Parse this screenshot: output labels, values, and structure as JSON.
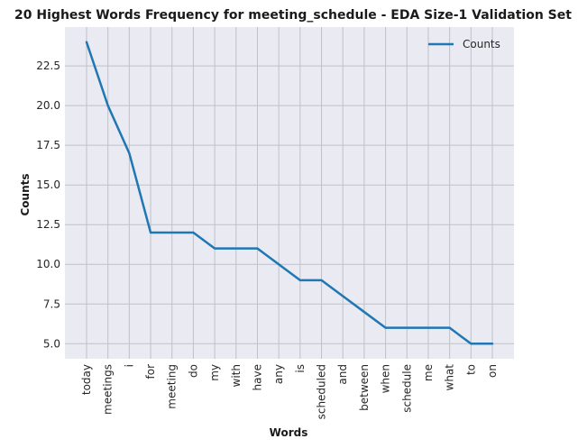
{
  "chart_data": {
    "type": "line",
    "title": "20 Highest Words Frequency for meeting_schedule - EDA Size-1 Validation Set",
    "xlabel": "Words",
    "ylabel": "Counts",
    "categories": [
      "today",
      "meetings",
      "i",
      "for",
      "meeting",
      "do",
      "my",
      "with",
      "have",
      "any",
      "is",
      "scheduled",
      "and",
      "between",
      "when",
      "schedule",
      "me",
      "what",
      "to",
      "on"
    ],
    "series": [
      {
        "name": "Counts",
        "values": [
          24,
          20,
          17,
          12,
          12,
          12,
          11,
          11,
          11,
          10,
          9,
          9,
          8,
          7,
          6,
          6,
          6,
          6,
          5,
          5
        ],
        "color": "#1f77b4"
      }
    ],
    "ylim": [
      4.05,
      24.95
    ],
    "yticks": [
      5.0,
      7.5,
      10.0,
      12.5,
      15.0,
      17.5,
      20.0,
      22.5
    ],
    "ytick_labels": [
      "5.0",
      "7.5",
      "10.0",
      "12.5",
      "15.0",
      "17.5",
      "20.0",
      "22.5"
    ],
    "grid": true,
    "legend_position": "upper-right",
    "background_color": "#eaeaf2",
    "grid_color": "#c0c0c8"
  }
}
